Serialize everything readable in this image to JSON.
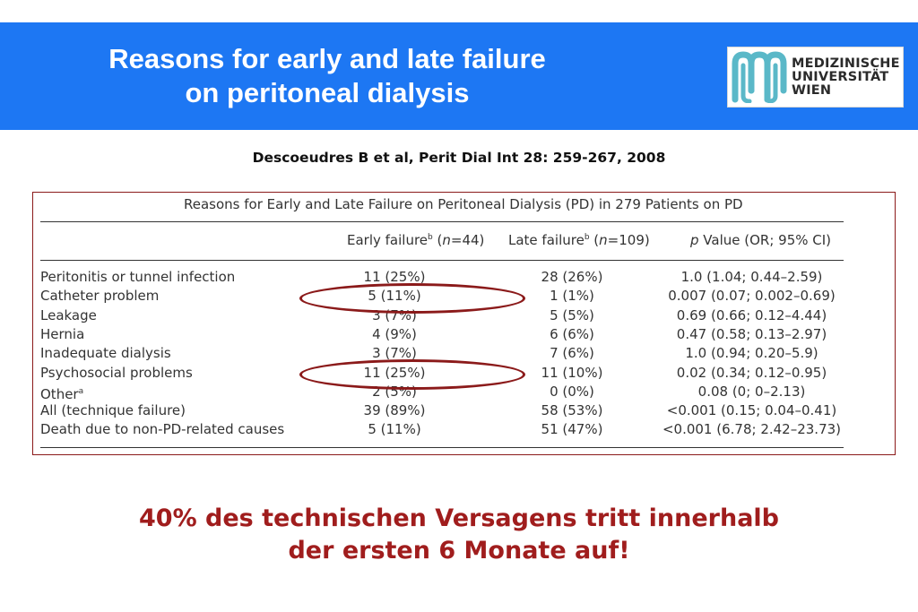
{
  "header": {
    "title_line1": "Reasons for early and late failure",
    "title_line2": "on peritoneal dialysis",
    "logo": {
      "line1": "MEDIZINISCHE",
      "line2": "UNIVERSITÄT",
      "line3": "WIEN",
      "mark_color": "#5ab8c8",
      "mark_icon": "meduni-wien-logo-icon"
    },
    "band_color": "#1d77f3"
  },
  "citation": "Descoeudres B et al, Perit Dial Int 28: 259-267, 2008",
  "table": {
    "caption": "Reasons for Early and Late Failure on Peritoneal Dialysis (PD) in 279 Patients on PD",
    "columns": {
      "early": {
        "label": "Early failure",
        "sup": "b",
        "n_label": "n",
        "n_value": "=44"
      },
      "late": {
        "label": "Late failure",
        "sup": "b",
        "n_label": "n",
        "n_value": "=109"
      },
      "pval": {
        "label_italic": "p",
        "label": " Value (OR; 95% CI)"
      }
    },
    "rows": [
      {
        "label": "Peritonitis or tunnel infection",
        "sup": "",
        "early": "11 (25%)",
        "late": "28 (26%)",
        "pval": "1.0 (1.04; 0.44–2.59)"
      },
      {
        "label": "Catheter problem",
        "sup": "",
        "early": "5 (11%)",
        "late": "1 (1%)",
        "pval": "0.007 (0.07; 0.002–0.69)"
      },
      {
        "label": "Leakage",
        "sup": "",
        "early": "3 (7%)",
        "late": "5 (5%)",
        "pval": "0.69 (0.66; 0.12–4.44)"
      },
      {
        "label": "Hernia",
        "sup": "",
        "early": "4 (9%)",
        "late": "6 (6%)",
        "pval": "0.47 (0.58; 0.13–2.97)"
      },
      {
        "label": "Inadequate dialysis",
        "sup": "",
        "early": "3 (7%)",
        "late": "7 (6%)",
        "pval": "1.0 (0.94; 0.20–5.9)"
      },
      {
        "label": "Psychosocial problems",
        "sup": "",
        "early": "11 (25%)",
        "late": "11 (10%)",
        "pval": "0.02 (0.34; 0.12–0.95)"
      },
      {
        "label": "Other",
        "sup": "a",
        "early": "2 (5%)",
        "late": "0 (0%)",
        "pval": "0.08 (0; 0–2.13)"
      },
      {
        "label": "All (technique failure)",
        "sup": "",
        "early": "39 (89%)",
        "late": "58 (53%)",
        "pval": "<0.001 (0.15; 0.04–0.41)"
      },
      {
        "label": "Death due to non-PD-related causes",
        "sup": "",
        "early": "5 (11%)",
        "late": "51 (47%)",
        "pval": "<0.001 (6.78; 2.42–23.73)"
      }
    ],
    "highlighted_rows": [
      "Catheter problem",
      "Psychosocial problems"
    ],
    "highlight_color": "#8b1a1a"
  },
  "footer_note": {
    "line1": "40% des technischen Versagens tritt innerhalb",
    "line2": "der ersten 6 Monate auf!",
    "color": "#a01d1d"
  }
}
